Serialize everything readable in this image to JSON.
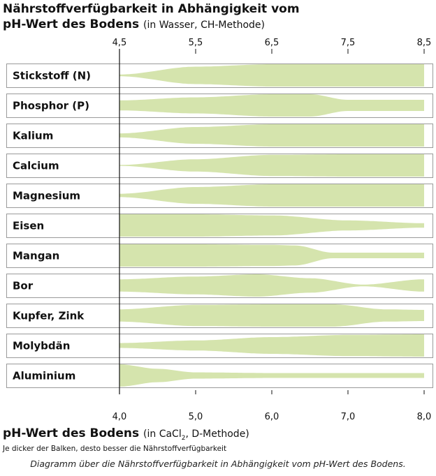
{
  "title_line1": "Nährstoffverfügbarkeit in Abhängigkeit vom",
  "title_line2": "pH-Wert des Bodens",
  "title_line2_sub": "(in Wasser, CH-Methode)",
  "x_title": "pH-Wert des Bodens",
  "x_title_sub_pre": "(in CaCl",
  "x_title_sub_index": "2",
  "x_title_sub_post": ", D-Methode)",
  "note": "Je dicker der Balken, desto besser die Nährstoffverfügbarkeit",
  "caption": "Diagramm über die Nährstoffverfügbarkeit in Abhängigkeit vom pH-Wert des Bodens.",
  "colors": {
    "band": "#d5e4ad",
    "row_border": "#9a9a9a",
    "axis": "#111111"
  },
  "chart_data": {
    "type": "area",
    "title": "Nährstoffverfügbarkeit in Abhängigkeit vom pH-Wert des Bodens",
    "xlabel": "pH-Wert des Bodens (in CaCl2, D-Methode)",
    "top_xlabel": "pH-Wert des Bodens (in Wasser, CH-Methode)",
    "xlim": [
      4.0,
      8.0
    ],
    "bottom_ticks": [
      "4,0",
      "5,0",
      "6,0",
      "7,0",
      "8,0"
    ],
    "bottom_tick_values": [
      4.0,
      5.0,
      6.0,
      7.0,
      8.0
    ],
    "top_ticks": [
      "4,5",
      "5,5",
      "6,5",
      "7,5",
      "8,5"
    ],
    "top_tick_values": [
      4.0,
      5.0,
      6.0,
      7.0,
      8.0
    ],
    "y_unit": "relative availability (band thickness, 0–1)",
    "series": [
      {
        "name": "Stickstoff (N)",
        "x": [
          4.0,
          5.0,
          6.0,
          7.0,
          8.0
        ],
        "values": [
          0.08,
          0.78,
          1.0,
          1.0,
          1.0
        ]
      },
      {
        "name": "Phosphor (P)",
        "x": [
          4.0,
          5.0,
          6.0,
          6.5,
          7.0,
          8.0
        ],
        "values": [
          0.45,
          0.72,
          1.0,
          1.0,
          0.5,
          0.5
        ]
      },
      {
        "name": "Kalium",
        "x": [
          4.0,
          5.0,
          6.0,
          7.0,
          8.0
        ],
        "values": [
          0.18,
          0.75,
          1.0,
          1.0,
          1.0
        ]
      },
      {
        "name": "Calcium",
        "x": [
          4.0,
          5.0,
          6.0,
          7.0,
          8.0
        ],
        "values": [
          0.04,
          0.55,
          0.95,
          1.0,
          1.0
        ]
      },
      {
        "name": "Magnesium",
        "x": [
          4.0,
          5.0,
          6.0,
          7.0,
          8.0
        ],
        "values": [
          0.15,
          0.75,
          1.0,
          1.0,
          1.0
        ]
      },
      {
        "name": "Eisen",
        "x": [
          4.0,
          5.0,
          6.0,
          7.0,
          8.0
        ],
        "values": [
          1.0,
          1.0,
          0.9,
          0.45,
          0.2
        ]
      },
      {
        "name": "Mangan",
        "x": [
          4.0,
          5.0,
          6.0,
          6.3,
          6.8,
          7.5,
          8.0
        ],
        "values": [
          1.0,
          1.0,
          0.95,
          0.9,
          0.25,
          0.25,
          0.25
        ]
      },
      {
        "name": "Bor",
        "x": [
          4.0,
          5.0,
          5.8,
          6.5,
          7.2,
          8.0
        ],
        "values": [
          0.55,
          0.8,
          1.0,
          0.65,
          0.08,
          0.55
        ]
      },
      {
        "name": "Kupfer, Zink",
        "x": [
          4.0,
          5.0,
          6.0,
          6.8,
          7.5,
          8.0
        ],
        "values": [
          0.55,
          0.95,
          1.0,
          1.0,
          0.55,
          0.5
        ]
      },
      {
        "name": "Molybdän",
        "x": [
          4.0,
          5.0,
          6.0,
          7.0,
          8.0
        ],
        "values": [
          0.22,
          0.45,
          0.75,
          0.95,
          1.0
        ]
      },
      {
        "name": "Aluminium",
        "x": [
          4.0,
          4.5,
          5.0,
          6.0,
          7.0,
          8.0
        ],
        "values": [
          1.0,
          0.6,
          0.28,
          0.22,
          0.22,
          0.22
        ]
      }
    ]
  }
}
